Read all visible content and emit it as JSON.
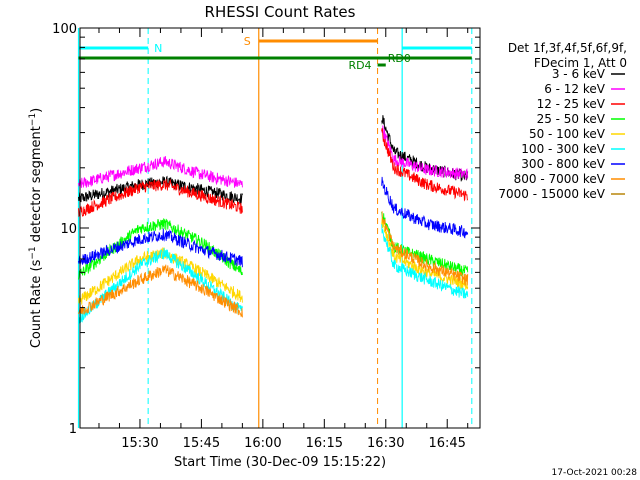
{
  "chart_data": {
    "type": "line",
    "title": "RHESSI Count Rates",
    "xlabel": "Start Time (30-Dec-09 15:15:22)",
    "ylabel": "Count Rate (s^-1 detector segment^-1)",
    "ylabel_main": "Count Rate (s",
    "ylabel_sup1": "−1",
    "ylabel_mid": " detector segment",
    "ylabel_sup2": "−1",
    "ylabel_end": ")",
    "y_scale": "log",
    "ylim": [
      1,
      100
    ],
    "y_ticks": [
      {
        "value": 100,
        "label": "100"
      },
      {
        "value": 10,
        "label": "10"
      },
      {
        "value": 1,
        "label": "1"
      }
    ],
    "xlim": [
      "15:15:22",
      "16:53:00"
    ],
    "x_ticks": [
      "15:30",
      "15:45",
      "16:00",
      "16:15",
      "16:30",
      "16:45"
    ],
    "legend_title_lines": [
      "Det 1f,3f,4f,5f,6f,9f,",
      "FDecim 1, Att 0"
    ],
    "legend_position": "right",
    "series": [
      {
        "name": "3 - 6 keV",
        "color": "#000000",
        "segments": [
          {
            "x": [
              "15:15",
              "15:30",
              "15:36",
              "15:45",
              "15:55"
            ],
            "y": [
              14,
              16.5,
              17,
              15.5,
              14
            ]
          },
          {
            "x": [
              "16:29",
              "16:32",
              "16:40",
              "16:50"
            ],
            "y": [
              36,
              24,
              20,
              18
            ]
          }
        ]
      },
      {
        "name": "6 - 12 keV",
        "color": "#ff00ff",
        "segments": [
          {
            "x": [
              "15:15",
              "15:30",
              "15:36",
              "15:45",
              "15:55"
            ],
            "y": [
              16.5,
              20,
              21.5,
              18.5,
              16.5
            ]
          },
          {
            "x": [
              "16:29",
              "16:32",
              "16:40",
              "16:50"
            ],
            "y": [
              32,
              22,
              19.5,
              18.5
            ]
          }
        ]
      },
      {
        "name": "12 - 25 keV",
        "color": "#ff0000",
        "segments": [
          {
            "x": [
              "15:15",
              "15:30",
              "15:36",
              "15:45",
              "15:55"
            ],
            "y": [
              12,
              16,
              16.5,
              14.5,
              12.5
            ]
          },
          {
            "x": [
              "16:29",
              "16:32",
              "16:40",
              "16:50"
            ],
            "y": [
              30,
              20,
              16.5,
              14.5
            ]
          }
        ]
      },
      {
        "name": "25 - 50 keV",
        "color": "#00ff00",
        "segments": [
          {
            "x": [
              "15:15",
              "15:30",
              "15:36",
              "15:45",
              "15:55"
            ],
            "y": [
              5.8,
              10,
              10.5,
              8.5,
              6
            ]
          },
          {
            "x": [
              "16:29",
              "16:32",
              "16:40",
              "16:50"
            ],
            "y": [
              12,
              8,
              7,
              6
            ]
          }
        ]
      },
      {
        "name": "50 - 100 keV",
        "color": "#ffd700",
        "segments": [
          {
            "x": [
              "15:15",
              "15:30",
              "15:36",
              "15:45",
              "15:55"
            ],
            "y": [
              4.3,
              7,
              7.5,
              6,
              4.5
            ]
          },
          {
            "x": [
              "16:29",
              "16:32",
              "16:40",
              "16:50"
            ],
            "y": [
              11,
              7.2,
              6,
              5.2
            ]
          }
        ]
      },
      {
        "name": "100 - 300 keV",
        "color": "#00ffff",
        "segments": [
          {
            "x": [
              "15:15",
              "15:30",
              "15:36",
              "15:45",
              "15:55"
            ],
            "y": [
              3.5,
              6.5,
              7.5,
              5.5,
              3.8
            ]
          },
          {
            "x": [
              "16:29",
              "16:32",
              "16:40",
              "16:50"
            ],
            "y": [
              10,
              6.5,
              5.5,
              4.6
            ]
          }
        ]
      },
      {
        "name": "300 - 800 keV",
        "color": "#0000ff",
        "segments": [
          {
            "x": [
              "15:15",
              "15:30",
              "15:36",
              "15:45",
              "15:55"
            ],
            "y": [
              6.8,
              8.8,
              9.3,
              7.8,
              6.8
            ]
          },
          {
            "x": [
              "16:29",
              "16:32",
              "16:40",
              "16:50"
            ],
            "y": [
              17,
              12.5,
              10.5,
              9.5
            ]
          }
        ]
      },
      {
        "name": "800 - 7000 keV",
        "color": "#ff8c00",
        "segments": [
          {
            "x": [
              "15:15",
              "15:30",
              "15:36",
              "15:45",
              "15:55"
            ],
            "y": [
              3.8,
              5.5,
              6.2,
              5,
              3.8
            ]
          },
          {
            "x": [
              "16:29",
              "16:32",
              "16:40",
              "16:50"
            ],
            "y": [
              11.5,
              8,
              6.5,
              5.5
            ]
          }
        ]
      },
      {
        "name": "7000 - 15000 keV",
        "color": "#b8860b",
        "segments": []
      }
    ],
    "annotations": {
      "night_label": "N",
      "saa_label": "S",
      "rd4_label": "RD4",
      "rd0_label": "RD0",
      "night_color": "#00ffff",
      "saa_color": "#ff8c00",
      "rd_color": "#008000",
      "night_intervals": [
        [
          "15:15",
          "15:32"
        ],
        [
          "16:34",
          "16:51"
        ]
      ],
      "saa_interval": [
        "15:59",
        "16:28"
      ],
      "rd_full_interval": [
        "15:15",
        "16:51"
      ],
      "rd4_interval": [
        "16:28",
        "16:30"
      ],
      "night_vlines_solid": [
        "15:15",
        "16:34"
      ],
      "night_vlines_dashed": [
        "15:32",
        "16:51"
      ],
      "saa_vline_solid": "15:59",
      "saa_vline_dashed": "16:28"
    },
    "grid": false
  },
  "footer": {
    "timestamp": "17-Oct-2021 00:28"
  }
}
